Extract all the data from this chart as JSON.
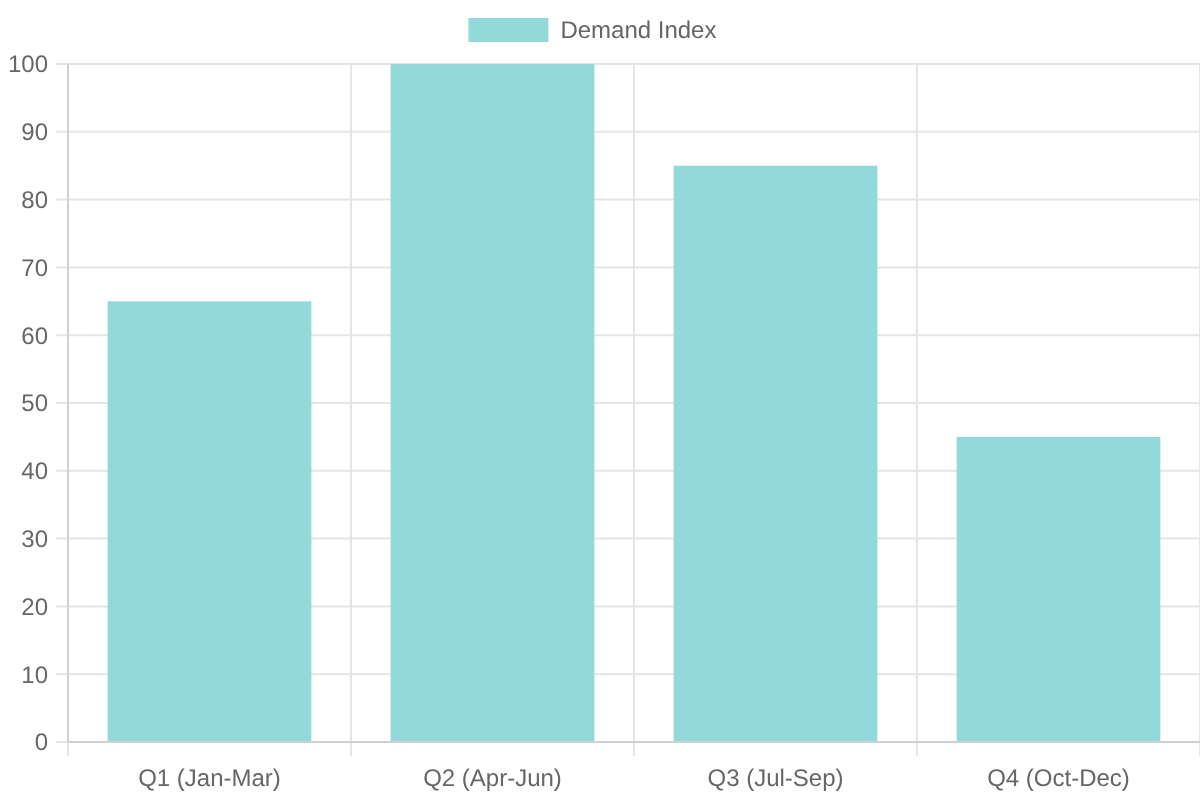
{
  "chart_data": {
    "type": "bar",
    "categories": [
      "Q1 (Jan-Mar)",
      "Q2 (Apr-Jun)",
      "Q3 (Jul-Sep)",
      "Q4 (Oct-Dec)"
    ],
    "series": [
      {
        "name": "Demand Index",
        "color": "#93d9d9",
        "values": [
          65,
          100,
          85,
          45
        ]
      }
    ],
    "ylim": [
      0,
      100
    ],
    "yticks": [
      0,
      10,
      20,
      30,
      40,
      50,
      60,
      70,
      80,
      90,
      100
    ],
    "grid": true,
    "legend": "top"
  }
}
